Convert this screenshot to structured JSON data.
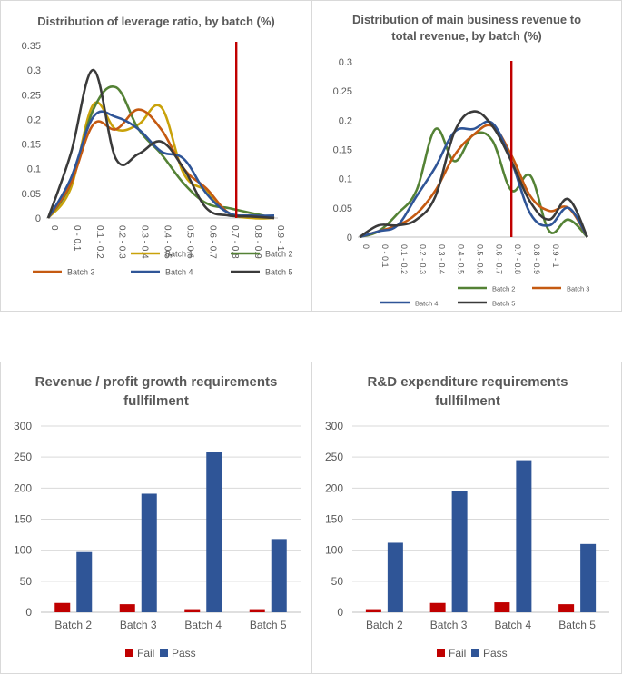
{
  "colors": {
    "batch1": "#c9a20a",
    "batch2": "#548235",
    "batch3": "#c55a11",
    "batch4": "#2f5597",
    "batch5": "#3a3a3a",
    "threshold": "#c00000",
    "fail": "#c00000",
    "pass": "#2f5597",
    "grid": "#d9d9d9",
    "axis": "#bfbfbf"
  },
  "chart_data": [
    {
      "type": "line",
      "title": "Distribution of leverage ratio, by batch (%)",
      "categories": [
        "0",
        "0 - 0.1",
        "0.1 - 0.2",
        "0.2 - 0.3",
        "0.3 - 0.4",
        "0.4 - 0.5",
        "0.5 - 0.6",
        "0.6 - 0.7",
        "0.7 - 0.8",
        "0.8 - 0.9",
        "0.9 - 1"
      ],
      "yticks": [
        "0",
        "0.05",
        "0.1",
        "0.15",
        "0.2",
        "0.25",
        "0.3",
        "0.35"
      ],
      "ylim": [
        0,
        0.35
      ],
      "threshold_category": "0.7 - 0.8",
      "series": [
        {
          "name": "Batch 1",
          "color_key": "batch1",
          "values": [
            0,
            0.06,
            0.23,
            0.18,
            0.19,
            0.225,
            0.09,
            0.055,
            0.01,
            0.0,
            0.0
          ]
        },
        {
          "name": "Batch 2",
          "color_key": "batch2",
          "values": [
            0,
            0.07,
            0.22,
            0.265,
            0.18,
            0.13,
            0.07,
            0.03,
            0.02,
            0.01,
            0.0
          ]
        },
        {
          "name": "Batch 3",
          "color_key": "batch3",
          "values": [
            0,
            0.07,
            0.19,
            0.18,
            0.22,
            0.18,
            0.1,
            0.06,
            0.01,
            0.005,
            0.0
          ]
        },
        {
          "name": "Batch 4",
          "color_key": "batch4",
          "values": [
            0,
            0.08,
            0.205,
            0.205,
            0.18,
            0.135,
            0.12,
            0.05,
            0.01,
            0.005,
            0.005
          ]
        },
        {
          "name": "Batch 5",
          "color_key": "batch5",
          "values": [
            0,
            0.13,
            0.3,
            0.12,
            0.13,
            0.155,
            0.1,
            0.02,
            0.005,
            0.003,
            0.0
          ]
        }
      ],
      "legend": "bottom"
    },
    {
      "type": "line",
      "title": "Distribution of main business revenue to total revenue, by batch (%)",
      "title_lines": [
        "Distribution of main business revenue to",
        "total revenue, by batch (%)"
      ],
      "categories": [
        "0",
        "0 - 0.1",
        "0.1 - 0.2",
        "0.2 - 0.3",
        "0.3 - 0.4",
        "0.4 - 0.5",
        "0.5 - 0.6",
        "0.6 - 0.7",
        "0.7 - 0.8",
        "0.8 - 0.9",
        "0.9 - 1",
        "",
        ""
      ],
      "yticks": [
        "0",
        "0.05",
        "0.1",
        "0.15",
        "0.2",
        "0.25",
        "0.3"
      ],
      "ylim": [
        0,
        0.3
      ],
      "threshold_category": "0.7 - 0.8",
      "series": [
        {
          "name": "Batch 2",
          "color_key": "batch2",
          "values": [
            0,
            0.01,
            0.04,
            0.08,
            0.185,
            0.13,
            0.175,
            0.165,
            0.08,
            0.105,
            0.01,
            0.03,
            0.0
          ]
        },
        {
          "name": "Batch 3",
          "color_key": "batch3",
          "values": [
            0,
            0.01,
            0.02,
            0.04,
            0.08,
            0.14,
            0.175,
            0.19,
            0.14,
            0.07,
            0.045,
            0.05,
            0.0
          ]
        },
        {
          "name": "Batch 4",
          "color_key": "batch4",
          "values": [
            0,
            0.01,
            0.02,
            0.07,
            0.12,
            0.18,
            0.185,
            0.195,
            0.13,
            0.04,
            0.02,
            0.05,
            0.0
          ]
        },
        {
          "name": "Batch 5",
          "color_key": "batch5",
          "values": [
            0,
            0.02,
            0.02,
            0.03,
            0.07,
            0.18,
            0.215,
            0.19,
            0.13,
            0.06,
            0.03,
            0.065,
            0.0
          ]
        }
      ],
      "legend": "bottom"
    },
    {
      "type": "bar",
      "title": "Revenue / profit growth requirements fullfilment",
      "title_lines": [
        "Revenue / profit growth requirements",
        "fullfilment"
      ],
      "categories": [
        "Batch 2",
        "Batch 3",
        "Batch 4",
        "Batch 5"
      ],
      "yticks": [
        "0",
        "50",
        "100",
        "150",
        "200",
        "250",
        "300"
      ],
      "ylim": [
        0,
        300
      ],
      "series": [
        {
          "name": "Fail",
          "color_key": "fail",
          "values": [
            15,
            13,
            5,
            5
          ]
        },
        {
          "name": "Pass",
          "color_key": "pass",
          "values": [
            97,
            191,
            258,
            118
          ]
        }
      ],
      "legend": "bottom"
    },
    {
      "type": "bar",
      "title": "R&D expenditure requirements fullfilment",
      "title_lines": [
        "R&D expenditure requirements",
        "fullfilment"
      ],
      "categories": [
        "Batch 2",
        "Batch 3",
        "Batch 4",
        "Batch 5"
      ],
      "yticks": [
        "0",
        "50",
        "100",
        "150",
        "200",
        "250",
        "300"
      ],
      "ylim": [
        0,
        300
      ],
      "series": [
        {
          "name": "Fail",
          "color_key": "fail",
          "values": [
            5,
            15,
            16,
            13
          ]
        },
        {
          "name": "Pass",
          "color_key": "pass",
          "values": [
            112,
            195,
            245,
            110
          ]
        }
      ],
      "legend": "bottom"
    }
  ]
}
